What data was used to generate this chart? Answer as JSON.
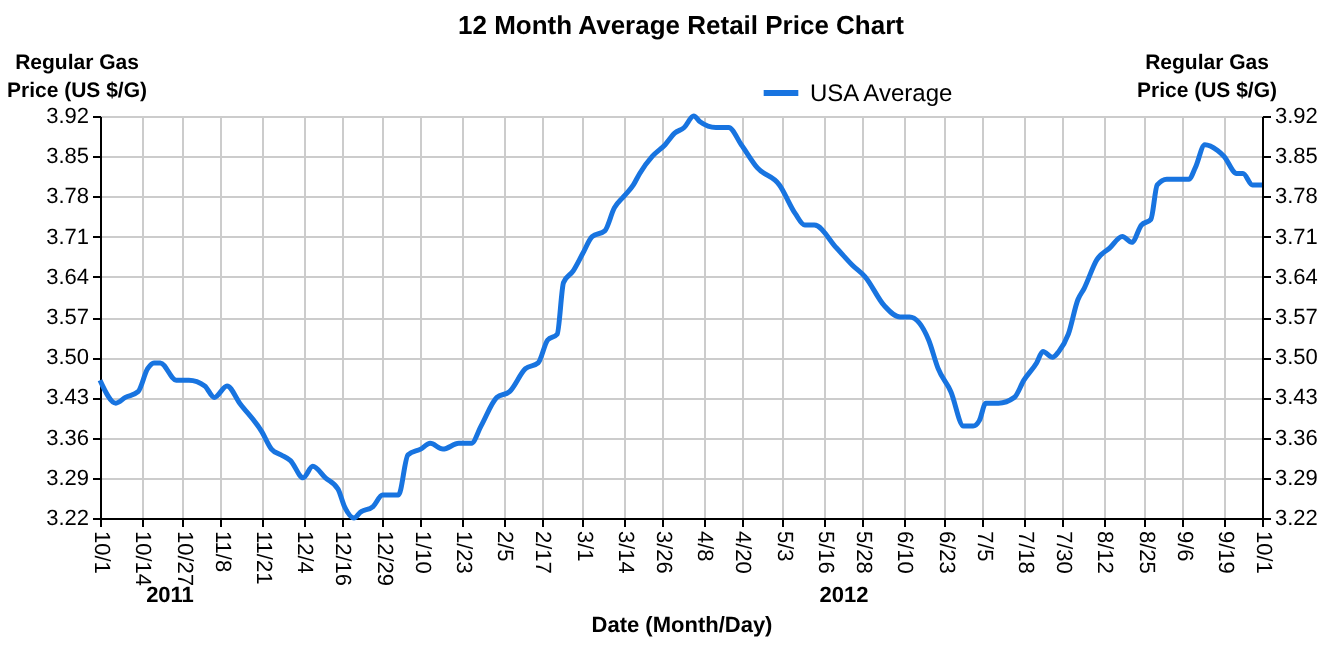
{
  "chart_data": {
    "type": "line",
    "title": "12 Month Average Retail Price Chart",
    "xlabel": "Date (Month/Day)",
    "ylabel": "Regular Gas Price (US $/G)",
    "y2label": "Regular Gas Price (US $/G)",
    "annotations": [
      "2011",
      "2012"
    ],
    "x": [
      "2011-10-01",
      "2011-10-06",
      "2011-10-09",
      "2011-10-13",
      "2011-10-16",
      "2011-10-18",
      "2011-10-20",
      "2011-10-25",
      "2011-10-29",
      "2011-11-03",
      "2011-11-06",
      "2011-11-10",
      "2011-11-14",
      "2011-11-21",
      "2011-11-24",
      "2011-11-27",
      "2011-11-30",
      "2011-12-04",
      "2011-12-07",
      "2011-12-11",
      "2011-12-15",
      "2011-12-17",
      "2011-12-20",
      "2011-12-22",
      "2011-12-26",
      "2011-12-29",
      "2012-01-03",
      "2012-01-06",
      "2012-01-10",
      "2012-01-13",
      "2012-01-17",
      "2012-01-22",
      "2012-01-26",
      "2012-01-29",
      "2012-02-03",
      "2012-02-07",
      "2012-02-12",
      "2012-02-16",
      "2012-02-19",
      "2012-02-22",
      "2012-02-24",
      "2012-02-27",
      "2012-03-01",
      "2012-03-04",
      "2012-03-08",
      "2012-03-11",
      "2012-03-14",
      "2012-03-17",
      "2012-03-19",
      "2012-03-23",
      "2012-03-27",
      "2012-03-30",
      "2012-04-02",
      "2012-04-05",
      "2012-04-07",
      "2012-04-12",
      "2012-04-16",
      "2012-04-20",
      "2012-04-25",
      "2012-05-02",
      "2012-05-07",
      "2012-05-10",
      "2012-05-13",
      "2012-05-20",
      "2012-05-25",
      "2012-05-29",
      "2012-06-04",
      "2012-06-09",
      "2012-06-12",
      "2012-06-18",
      "2012-06-21",
      "2012-06-25",
      "2012-06-29",
      "2012-07-02",
      "2012-07-04",
      "2012-07-06",
      "2012-07-10",
      "2012-07-15",
      "2012-07-18",
      "2012-07-22",
      "2012-07-24",
      "2012-07-27",
      "2012-07-29",
      "2012-08-01",
      "2012-08-04",
      "2012-08-06",
      "2012-08-10",
      "2012-08-14",
      "2012-08-18",
      "2012-08-21",
      "2012-08-24",
      "2012-08-27",
      "2012-08-29",
      "2012-09-01",
      "2012-09-08",
      "2012-09-10",
      "2012-09-13",
      "2012-09-17",
      "2012-09-19",
      "2012-09-23",
      "2012-09-25",
      "2012-09-28",
      "2012-10-01"
    ],
    "series": [
      {
        "name": "USA Average",
        "color": "#1874e0",
        "values": [
          3.46,
          3.42,
          3.43,
          3.44,
          3.48,
          3.49,
          3.49,
          3.46,
          3.46,
          3.45,
          3.43,
          3.45,
          3.42,
          3.37,
          3.34,
          3.33,
          3.32,
          3.29,
          3.31,
          3.29,
          3.27,
          3.24,
          3.22,
          3.23,
          3.24,
          3.26,
          3.26,
          3.33,
          3.34,
          3.35,
          3.34,
          3.35,
          3.35,
          3.38,
          3.43,
          3.44,
          3.48,
          3.49,
          3.53,
          3.54,
          3.63,
          3.65,
          3.68,
          3.71,
          3.72,
          3.76,
          3.78,
          3.8,
          3.82,
          3.85,
          3.87,
          3.89,
          3.9,
          3.92,
          3.91,
          3.9,
          3.9,
          3.87,
          3.83,
          3.8,
          3.75,
          3.73,
          3.73,
          3.69,
          3.66,
          3.64,
          3.59,
          3.57,
          3.57,
          3.53,
          3.48,
          3.44,
          3.38,
          3.38,
          3.39,
          3.42,
          3.42,
          3.43,
          3.46,
          3.49,
          3.51,
          3.5,
          3.51,
          3.54,
          3.6,
          3.62,
          3.67,
          3.69,
          3.71,
          3.7,
          3.73,
          3.74,
          3.8,
          3.81,
          3.81,
          3.83,
          3.87,
          3.86,
          3.85,
          3.82,
          3.82,
          3.8,
          3.8
        ]
      }
    ],
    "xlim": [
      "2011-10-01",
      "2012-10-01"
    ],
    "xticks": [
      {
        "value": "2011-10-01",
        "label": "10/1"
      },
      {
        "value": "2011-10-14",
        "label": "10/14"
      },
      {
        "value": "2011-10-27",
        "label": "10/27"
      },
      {
        "value": "2011-11-08",
        "label": "11/8"
      },
      {
        "value": "2011-11-21",
        "label": "11/21"
      },
      {
        "value": "2011-12-04",
        "label": "12/4"
      },
      {
        "value": "2011-12-16",
        "label": "12/16"
      },
      {
        "value": "2011-12-29",
        "label": "12/29"
      },
      {
        "value": "2012-01-10",
        "label": "1/10"
      },
      {
        "value": "2012-01-23",
        "label": "1/23"
      },
      {
        "value": "2012-02-05",
        "label": "2/5"
      },
      {
        "value": "2012-02-17",
        "label": "2/17"
      },
      {
        "value": "2012-03-01",
        "label": "3/1"
      },
      {
        "value": "2012-03-14",
        "label": "3/14"
      },
      {
        "value": "2012-03-26",
        "label": "3/26"
      },
      {
        "value": "2012-04-08",
        "label": "4/8"
      },
      {
        "value": "2012-04-20",
        "label": "4/20"
      },
      {
        "value": "2012-05-03",
        "label": "5/3"
      },
      {
        "value": "2012-05-16",
        "label": "5/16"
      },
      {
        "value": "2012-05-28",
        "label": "5/28"
      },
      {
        "value": "2012-06-10",
        "label": "6/10"
      },
      {
        "value": "2012-06-23",
        "label": "6/23"
      },
      {
        "value": "2012-07-05",
        "label": "7/5"
      },
      {
        "value": "2012-07-18",
        "label": "7/18"
      },
      {
        "value": "2012-07-30",
        "label": "7/30"
      },
      {
        "value": "2012-08-12",
        "label": "8/12"
      },
      {
        "value": "2012-08-25",
        "label": "8/25"
      },
      {
        "value": "2012-09-06",
        "label": "9/6"
      },
      {
        "value": "2012-09-19",
        "label": "9/19"
      },
      {
        "value": "2012-10-01",
        "label": "10/1"
      }
    ],
    "ylim": [
      3.22,
      3.92
    ],
    "yticks": [
      3.22,
      3.29,
      3.36,
      3.43,
      {
        "value": 3.5,
        "label": "3.50"
      },
      3.57,
      3.64,
      3.71,
      3.78,
      3.85,
      3.92
    ],
    "y2lim": [
      3.22,
      3.92
    ],
    "y2ticks": [
      3.22,
      3.29,
      3.36,
      3.43,
      {
        "value": 3.5,
        "label": "3.50"
      },
      3.57,
      3.64,
      3.71,
      3.78,
      3.85,
      3.92
    ],
    "grid": true,
    "legend": "top",
    "line_style": "solid",
    "marker": "none"
  }
}
